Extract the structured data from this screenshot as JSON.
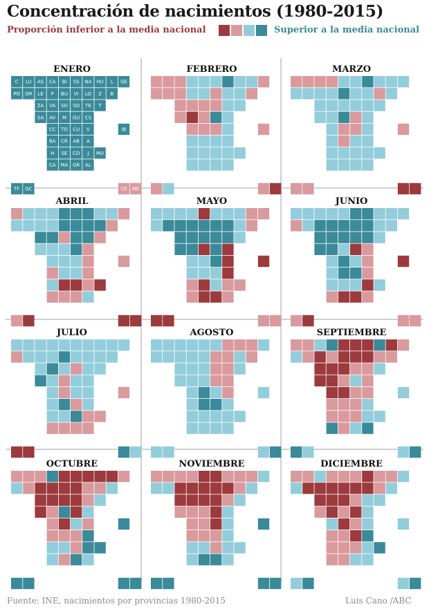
{
  "title": "Concentración de nacimientos (1980-2015)",
  "legend": {
    "below_label": "Proporción inferior a la media nacional",
    "above_label": "Superior a la media nacional",
    "scale": [
      "muy inferior",
      "inferior",
      "superior",
      "muy superior"
    ]
  },
  "colors": {
    "muy_inferior": "#9c3a3e",
    "inferior": "#d99a9e",
    "superior": "#93cddb",
    "muy_superior": "#3a8a99"
  },
  "source": "Fuente: INE, nacimientos por provincias 1980-2015",
  "credit": "Luis Cano /ABC",
  "chart_data": {
    "type": "heatmap",
    "legend_placement": "top",
    "scale": "0 = muy inferior, 1 = inferior, 2 = superior, 3 = muy superior (respecto a la media nacional)",
    "provinces": [
      "C",
      "LU",
      "AS",
      "CA",
      "BI",
      "SS",
      "NA",
      "HU",
      "L",
      "GE",
      "PO",
      "OR",
      "LE",
      "P",
      "BU",
      "VI",
      "LO",
      "Z",
      "B",
      "ZA",
      "VA",
      "SG",
      "SO",
      "TE",
      "T",
      "SA",
      "AV",
      "M",
      "GU",
      "CS",
      "CC",
      "TO",
      "CU",
      "V",
      "IB",
      "BA",
      "CR",
      "AB",
      "A",
      "H",
      "SE",
      "CO",
      "J",
      "MU",
      "CA",
      "MA",
      "GR",
      "AL",
      "TF",
      "GC",
      "CE",
      "ME"
    ],
    "months": [
      {
        "name": "ENERO",
        "values": [
          3,
          3,
          3,
          3,
          3,
          3,
          3,
          3,
          3,
          3,
          3,
          3,
          3,
          3,
          3,
          3,
          3,
          3,
          3,
          3,
          3,
          3,
          3,
          3,
          3,
          3,
          3,
          3,
          3,
          3,
          3,
          3,
          3,
          3,
          3,
          3,
          3,
          3,
          3,
          3,
          3,
          3,
          3,
          3,
          3,
          3,
          3,
          3,
          3,
          3,
          1,
          1
        ]
      },
      {
        "name": "FEBRERO",
        "values": [
          1,
          1,
          1,
          2,
          2,
          2,
          3,
          2,
          2,
          1,
          1,
          1,
          1,
          2,
          2,
          1,
          2,
          2,
          1,
          1,
          1,
          1,
          1,
          2,
          2,
          1,
          0,
          1,
          3,
          2,
          1,
          1,
          1,
          2,
          1,
          2,
          2,
          2,
          2,
          2,
          2,
          2,
          2,
          2,
          2,
          2,
          2,
          2,
          1,
          2,
          1,
          0
        ]
      },
      {
        "name": "MARZO",
        "values": [
          1,
          1,
          1,
          1,
          2,
          2,
          3,
          2,
          2,
          2,
          2,
          2,
          2,
          2,
          3,
          2,
          2,
          1,
          2,
          2,
          2,
          2,
          2,
          2,
          2,
          2,
          2,
          3,
          1,
          2,
          2,
          1,
          1,
          2,
          1,
          2,
          1,
          2,
          2,
          2,
          2,
          2,
          2,
          2,
          2,
          2,
          2,
          2,
          1,
          1,
          0,
          0
        ]
      },
      {
        "name": "ABRIL",
        "values": [
          1,
          2,
          2,
          2,
          3,
          3,
          3,
          2,
          2,
          1,
          2,
          2,
          2,
          2,
          3,
          3,
          3,
          3,
          1,
          3,
          3,
          1,
          3,
          3,
          1,
          2,
          2,
          2,
          3,
          1,
          2,
          2,
          2,
          1,
          1,
          1,
          2,
          2,
          1,
          2,
          0,
          0,
          1,
          0,
          1,
          1,
          1,
          2,
          1,
          0,
          0,
          0
        ]
      },
      {
        "name": "MAYO",
        "values": [
          2,
          2,
          2,
          2,
          0,
          2,
          2,
          2,
          1,
          1,
          2,
          3,
          3,
          3,
          3,
          3,
          3,
          2,
          1,
          3,
          3,
          3,
          3,
          3,
          2,
          3,
          3,
          0,
          3,
          0,
          2,
          2,
          3,
          0,
          0,
          2,
          2,
          2,
          0,
          1,
          0,
          2,
          1,
          1,
          1,
          0,
          0,
          1,
          0,
          0,
          1,
          1
        ]
      },
      {
        "name": "JUNIO",
        "values": [
          2,
          2,
          2,
          2,
          2,
          3,
          3,
          2,
          2,
          2,
          1,
          2,
          3,
          3,
          3,
          3,
          3,
          2,
          2,
          3,
          3,
          3,
          3,
          3,
          2,
          3,
          3,
          2,
          0,
          1,
          2,
          3,
          2,
          1,
          0,
          2,
          3,
          3,
          1,
          2,
          2,
          2,
          0,
          2,
          1,
          0,
          0,
          1,
          1,
          0,
          1,
          1
        ]
      },
      {
        "name": "JULIO",
        "values": [
          2,
          2,
          2,
          2,
          2,
          2,
          2,
          2,
          2,
          2,
          1,
          2,
          2,
          2,
          3,
          2,
          2,
          2,
          2,
          2,
          3,
          2,
          1,
          2,
          2,
          3,
          2,
          1,
          2,
          2,
          2,
          1,
          2,
          2,
          1,
          2,
          3,
          1,
          2,
          2,
          2,
          3,
          1,
          1,
          1,
          1,
          1,
          1,
          0,
          0,
          3,
          2
        ]
      },
      {
        "name": "AGOSTO",
        "values": [
          2,
          2,
          2,
          2,
          2,
          2,
          1,
          1,
          1,
          2,
          2,
          2,
          2,
          2,
          2,
          1,
          1,
          2,
          1,
          2,
          2,
          2,
          1,
          1,
          2,
          2,
          2,
          2,
          1,
          1,
          2,
          3,
          2,
          1,
          2,
          2,
          3,
          3,
          2,
          2,
          2,
          2,
          2,
          2,
          2,
          2,
          2,
          2,
          2,
          2,
          2,
          3
        ]
      },
      {
        "name": "SEPTIEMBRE",
        "values": [
          1,
          1,
          2,
          3,
          0,
          0,
          0,
          3,
          0,
          1,
          2,
          1,
          0,
          1,
          0,
          0,
          0,
          1,
          1,
          0,
          0,
          0,
          1,
          1,
          2,
          0,
          0,
          1,
          2,
          1,
          0,
          0,
          1,
          1,
          2,
          1,
          1,
          1,
          2,
          1,
          1,
          1,
          2,
          2,
          3,
          1,
          2,
          3,
          3,
          2,
          2,
          3
        ]
      },
      {
        "name": "OCTUBRE",
        "values": [
          1,
          1,
          1,
          3,
          0,
          0,
          0,
          0,
          0,
          1,
          2,
          1,
          0,
          0,
          0,
          0,
          1,
          1,
          2,
          0,
          0,
          0,
          0,
          1,
          2,
          0,
          1,
          3,
          0,
          2,
          1,
          0,
          2,
          1,
          3,
          1,
          1,
          1,
          3,
          2,
          2,
          1,
          3,
          3,
          2,
          1,
          3,
          2,
          3,
          3,
          3,
          3
        ]
      },
      {
        "name": "NOVIEMBRE",
        "values": [
          1,
          1,
          1,
          1,
          0,
          0,
          1,
          1,
          1,
          2,
          2,
          2,
          0,
          0,
          0,
          0,
          0,
          1,
          2,
          0,
          0,
          0,
          0,
          1,
          2,
          1,
          1,
          1,
          0,
          2,
          1,
          1,
          0,
          2,
          3,
          1,
          1,
          1,
          2,
          2,
          2,
          1,
          2,
          2,
          2,
          3,
          3,
          2,
          3,
          3,
          3,
          3
        ]
      },
      {
        "name": "DICIEMBRE",
        "values": [
          1,
          1,
          2,
          1,
          1,
          1,
          0,
          1,
          1,
          2,
          2,
          0,
          0,
          0,
          0,
          0,
          0,
          1,
          2,
          0,
          0,
          0,
          1,
          2,
          2,
          1,
          0,
          1,
          0,
          2,
          2,
          0,
          1,
          2,
          2,
          1,
          1,
          0,
          3,
          1,
          1,
          1,
          2,
          3,
          1,
          1,
          2,
          2,
          2,
          3,
          2,
          3
        ]
      }
    ]
  }
}
